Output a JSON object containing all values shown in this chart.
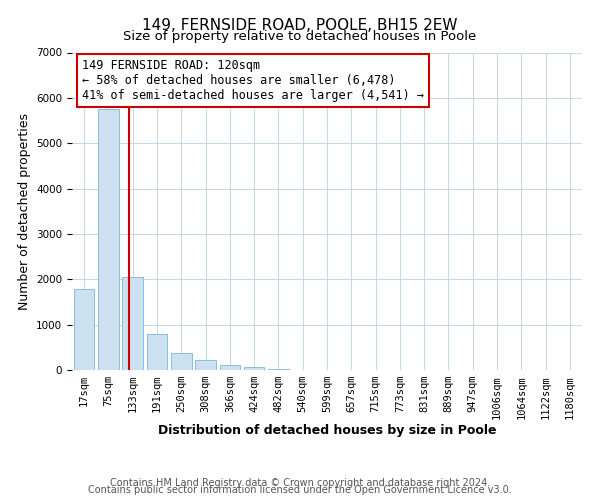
{
  "title": "149, FERNSIDE ROAD, POOLE, BH15 2EW",
  "subtitle": "Size of property relative to detached houses in Poole",
  "xlabel": "Distribution of detached houses by size in Poole",
  "ylabel": "Number of detached properties",
  "bar_labels": [
    "17sqm",
    "75sqm",
    "133sqm",
    "191sqm",
    "250sqm",
    "308sqm",
    "366sqm",
    "424sqm",
    "482sqm",
    "540sqm",
    "599sqm",
    "657sqm",
    "715sqm",
    "773sqm",
    "831sqm",
    "889sqm",
    "947sqm",
    "1006sqm",
    "1064sqm",
    "1122sqm",
    "1180sqm"
  ],
  "bar_heights": [
    1780,
    5750,
    2050,
    800,
    365,
    220,
    110,
    60,
    30,
    10,
    5,
    2,
    1,
    0,
    0,
    0,
    0,
    0,
    0,
    0,
    0
  ],
  "bar_color": "#cce0f0",
  "bar_edge_color": "#7ab8d8",
  "property_line_x": 1.83,
  "property_line_color": "#cc0000",
  "ylim": [
    0,
    7000
  ],
  "yticks": [
    0,
    1000,
    2000,
    3000,
    4000,
    5000,
    6000,
    7000
  ],
  "annotation_box_text": "149 FERNSIDE ROAD: 120sqm\n← 58% of detached houses are smaller (6,478)\n41% of semi-detached houses are larger (4,541) →",
  "footer_line1": "Contains HM Land Registry data © Crown copyright and database right 2024.",
  "footer_line2": "Contains public sector information licensed under the Open Government Licence v3.0.",
  "grid_color": "#c5d8eb",
  "background_color": "#ffffff",
  "title_fontsize": 11,
  "subtitle_fontsize": 9.5,
  "axis_label_fontsize": 9,
  "tick_label_fontsize": 7.5,
  "footer_fontsize": 7,
  "annotation_fontsize": 8.5
}
